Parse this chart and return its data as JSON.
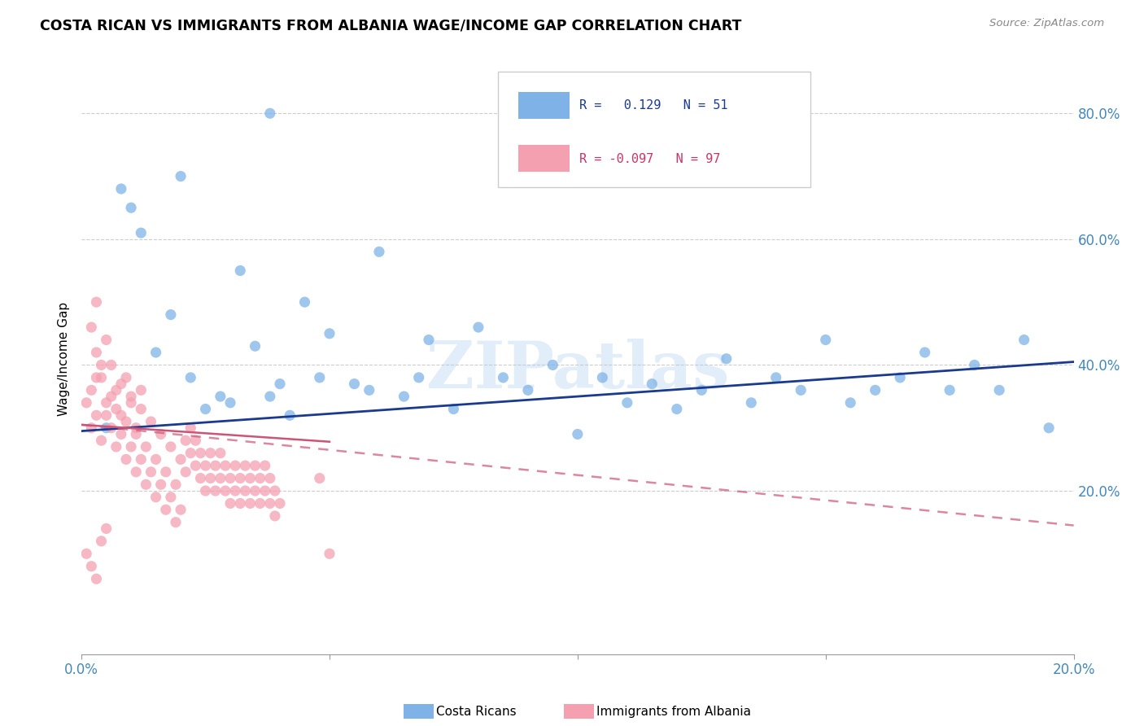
{
  "title": "COSTA RICAN VS IMMIGRANTS FROM ALBANIA WAGE/INCOME GAP CORRELATION CHART",
  "source": "Source: ZipAtlas.com",
  "ylabel": "Wage/Income Gap",
  "blue_color": "#7FB3E8",
  "pink_color": "#F4A0B0",
  "blue_line_color": "#1a3a8f",
  "pink_line_color": "#cc5577",
  "watermark": "ZIPatlas",
  "xmin": 0.0,
  "xmax": 0.2,
  "ymin": -0.06,
  "ymax": 0.88,
  "blue_scatter_x": [
    0.005,
    0.008,
    0.01,
    0.012,
    0.015,
    0.018,
    0.02,
    0.022,
    0.025,
    0.028,
    0.03,
    0.032,
    0.035,
    0.038,
    0.04,
    0.042,
    0.045,
    0.048,
    0.05,
    0.055,
    0.058,
    0.06,
    0.065,
    0.068,
    0.07,
    0.075,
    0.08,
    0.085,
    0.09,
    0.095,
    0.1,
    0.105,
    0.11,
    0.115,
    0.12,
    0.125,
    0.13,
    0.135,
    0.14,
    0.145,
    0.15,
    0.155,
    0.16,
    0.165,
    0.17,
    0.175,
    0.18,
    0.185,
    0.19,
    0.195,
    0.038
  ],
  "blue_scatter_y": [
    0.3,
    0.68,
    0.65,
    0.61,
    0.42,
    0.48,
    0.7,
    0.38,
    0.33,
    0.35,
    0.34,
    0.55,
    0.43,
    0.35,
    0.37,
    0.32,
    0.5,
    0.38,
    0.45,
    0.37,
    0.36,
    0.58,
    0.35,
    0.38,
    0.44,
    0.33,
    0.46,
    0.38,
    0.36,
    0.4,
    0.29,
    0.38,
    0.34,
    0.37,
    0.33,
    0.36,
    0.41,
    0.34,
    0.38,
    0.36,
    0.44,
    0.34,
    0.36,
    0.38,
    0.42,
    0.36,
    0.4,
    0.36,
    0.44,
    0.3,
    0.8
  ],
  "pink_scatter_x": [
    0.001,
    0.002,
    0.002,
    0.003,
    0.003,
    0.004,
    0.004,
    0.005,
    0.005,
    0.006,
    0.006,
    0.007,
    0.007,
    0.008,
    0.008,
    0.009,
    0.009,
    0.01,
    0.01,
    0.011,
    0.011,
    0.012,
    0.012,
    0.013,
    0.013,
    0.014,
    0.014,
    0.015,
    0.015,
    0.016,
    0.016,
    0.017,
    0.017,
    0.018,
    0.018,
    0.019,
    0.019,
    0.02,
    0.02,
    0.021,
    0.021,
    0.022,
    0.022,
    0.023,
    0.023,
    0.024,
    0.024,
    0.025,
    0.025,
    0.026,
    0.026,
    0.027,
    0.027,
    0.028,
    0.028,
    0.029,
    0.029,
    0.03,
    0.03,
    0.031,
    0.031,
    0.032,
    0.032,
    0.033,
    0.033,
    0.034,
    0.034,
    0.035,
    0.035,
    0.036,
    0.036,
    0.037,
    0.037,
    0.038,
    0.038,
    0.039,
    0.039,
    0.04,
    0.002,
    0.003,
    0.004,
    0.005,
    0.006,
    0.007,
    0.008,
    0.009,
    0.01,
    0.011,
    0.012,
    0.048,
    0.001,
    0.002,
    0.003,
    0.004,
    0.005,
    0.05,
    0.003
  ],
  "pink_scatter_y": [
    0.34,
    0.3,
    0.36,
    0.32,
    0.38,
    0.28,
    0.4,
    0.32,
    0.44,
    0.3,
    0.35,
    0.27,
    0.33,
    0.29,
    0.37,
    0.25,
    0.31,
    0.27,
    0.35,
    0.23,
    0.29,
    0.25,
    0.33,
    0.21,
    0.27,
    0.23,
    0.31,
    0.19,
    0.25,
    0.21,
    0.29,
    0.17,
    0.23,
    0.19,
    0.27,
    0.15,
    0.21,
    0.17,
    0.25,
    0.23,
    0.28,
    0.26,
    0.3,
    0.24,
    0.28,
    0.22,
    0.26,
    0.2,
    0.24,
    0.22,
    0.26,
    0.2,
    0.24,
    0.22,
    0.26,
    0.2,
    0.24,
    0.18,
    0.22,
    0.2,
    0.24,
    0.18,
    0.22,
    0.2,
    0.24,
    0.18,
    0.22,
    0.2,
    0.24,
    0.18,
    0.22,
    0.2,
    0.24,
    0.18,
    0.22,
    0.16,
    0.2,
    0.18,
    0.46,
    0.42,
    0.38,
    0.34,
    0.4,
    0.36,
    0.32,
    0.38,
    0.34,
    0.3,
    0.36,
    0.22,
    0.1,
    0.08,
    0.06,
    0.12,
    0.14,
    0.1,
    0.5
  ]
}
